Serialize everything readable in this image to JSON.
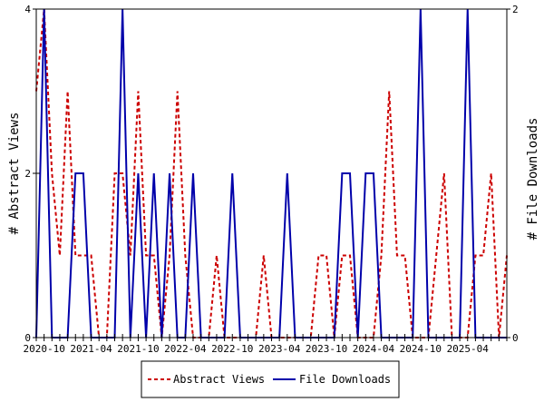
{
  "chart_data": {
    "type": "line",
    "title": "",
    "ylabel_left": "# Abstract Views",
    "ylabel_right": "# File Downloads",
    "x_tick_labels": [
      "2020-10",
      "2021-04",
      "2021-10",
      "2022-04",
      "2022-10",
      "2023-04",
      "2023-10",
      "2024-04",
      "2024-10",
      "2025-04"
    ],
    "y_left_ticks": [
      "0",
      "2",
      "4"
    ],
    "y_right_ticks": [
      "0",
      "2"
    ],
    "y_left_range": [
      0,
      4
    ],
    "y_right_range": [
      0,
      2
    ],
    "x_range": [
      "2020-09",
      "2025-09"
    ],
    "grid": false,
    "legend_position": "bottom",
    "x": [
      "2020-09",
      "2020-10",
      "2020-11",
      "2020-12",
      "2021-01",
      "2021-02",
      "2021-03",
      "2021-04",
      "2021-05",
      "2021-06",
      "2021-07",
      "2021-08",
      "2021-09",
      "2021-10",
      "2021-11",
      "2021-12",
      "2022-01",
      "2022-02",
      "2022-03",
      "2022-04",
      "2022-05",
      "2022-06",
      "2022-07",
      "2022-08",
      "2022-09",
      "2022-10",
      "2022-11",
      "2022-12",
      "2023-01",
      "2023-02",
      "2023-03",
      "2023-04",
      "2023-05",
      "2023-06",
      "2023-07",
      "2023-08",
      "2023-09",
      "2023-10",
      "2023-11",
      "2023-12",
      "2024-01",
      "2024-02",
      "2024-03",
      "2024-04",
      "2024-05",
      "2024-06",
      "2024-07",
      "2024-08",
      "2024-09",
      "2024-10",
      "2024-11",
      "2024-12",
      "2025-01",
      "2025-02",
      "2025-03",
      "2025-04",
      "2025-05",
      "2025-06",
      "2025-07",
      "2025-08",
      "2025-09"
    ],
    "series": [
      {
        "name": "Abstract Views",
        "axis": "left",
        "color": "#cc0000",
        "dash": true,
        "values": [
          3,
          4,
          2,
          1,
          3,
          1,
          1,
          1,
          0,
          0,
          2,
          2,
          1,
          3,
          1,
          1,
          0,
          1,
          3,
          1,
          0,
          0,
          0,
          1,
          0,
          0,
          0,
          0,
          0,
          1,
          0,
          0,
          0,
          0,
          0,
          0,
          1,
          1,
          0,
          1,
          1,
          0,
          0,
          0,
          1,
          3,
          1,
          1,
          0,
          0,
          0,
          1,
          2,
          0,
          0,
          0,
          1,
          1,
          2,
          0,
          1
        ]
      },
      {
        "name": "File Downloads",
        "axis": "right",
        "color": "#0000aa",
        "dash": false,
        "values": [
          0,
          2,
          0,
          0,
          0,
          1,
          1,
          0,
          0,
          0,
          0,
          2,
          0,
          1,
          0,
          1,
          0,
          1,
          0,
          0,
          1,
          0,
          0,
          0,
          0,
          1,
          0,
          0,
          0,
          0,
          0,
          0,
          1,
          0,
          0,
          0,
          0,
          0,
          0,
          1,
          1,
          0,
          1,
          1,
          0,
          0,
          0,
          0,
          0,
          2,
          0,
          0,
          0,
          0,
          0,
          2,
          0,
          0,
          0,
          0,
          0
        ]
      }
    ]
  },
  "legend": {
    "items": [
      {
        "label": "Abstract Views",
        "color": "#cc0000"
      },
      {
        "label": "File Downloads",
        "color": "#0000aa"
      }
    ]
  }
}
